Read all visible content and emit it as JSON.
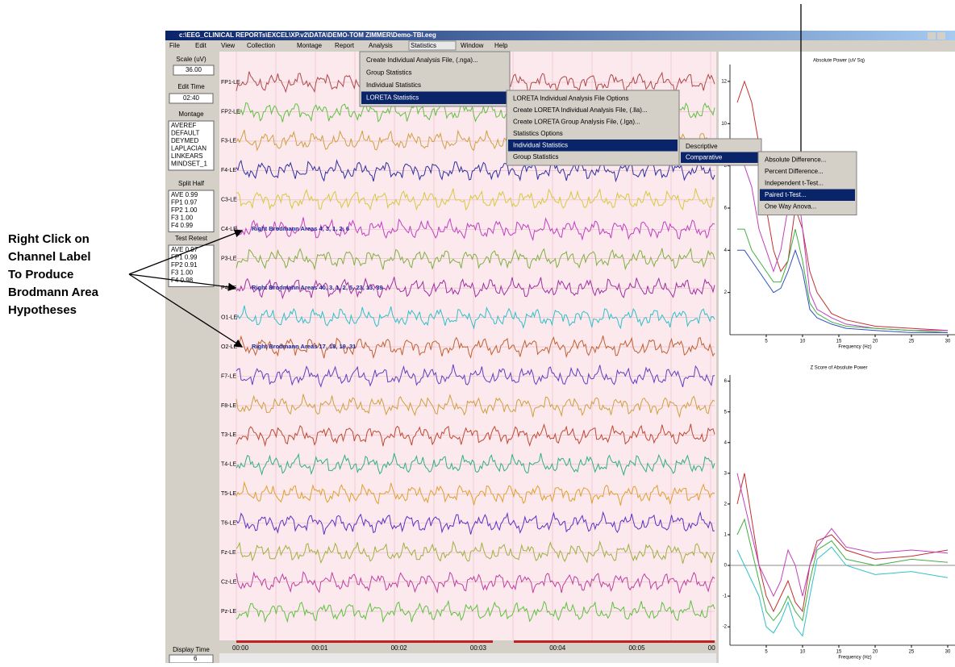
{
  "annotation": {
    "lines": [
      "Right Click on",
      "Channel Label",
      "To Produce",
      "Brodmann Area",
      "Hypotheses"
    ]
  },
  "window": {
    "title": "c:\\EEG_CLINICAL REPORTs\\EXCEL\\XP.v2\\DATA\\DEMO-TOM ZIMMER\\Demo-TBI.eeg",
    "menu": [
      "File",
      "Edit",
      "View",
      "Collection",
      "Montage",
      "Report",
      "Analysis",
      "Statistics",
      "Window",
      "Help"
    ]
  },
  "left_panel": {
    "scale_label": "Scale (uV)",
    "scale_value": "36.00",
    "edit_time_label": "Edit Time",
    "edit_time": "02:40",
    "montage_label": "Montage",
    "montage": [
      "AVEREF",
      "DEFAULT",
      "DEYMED",
      "LAPLACIAN",
      "LINKEARS",
      "MINDSET_1"
    ],
    "split_half_label": "Split Half",
    "split_half": [
      "AVE 0.99",
      "FP1 0.97",
      "FP2 1.00",
      "F3 1.00",
      "F4 0.99"
    ],
    "test_retest_label": "Test Retest",
    "test_retest": [
      "AVE 0.97",
      "FP1 0.99",
      "FP2 0.91",
      "F3 1.00",
      "F4 0.98"
    ],
    "display_time_label": "Display Time",
    "display_time": "6"
  },
  "eeg": {
    "channels": [
      {
        "label": "FP1-LE",
        "color": "#b04848"
      },
      {
        "label": "FP2-LE",
        "color": "#60c040"
      },
      {
        "label": "F3-LE",
        "color": "#d0a040"
      },
      {
        "label": "F4-LE",
        "color": "#3030a0"
      },
      {
        "label": "C3-LE",
        "color": "#d8c840"
      },
      {
        "label": "C4-LE",
        "color": "#c040c0",
        "annotation": "Right Brodmann Areas  4, 3, 1, 2, 6"
      },
      {
        "label": "P3-LE",
        "color": "#80b040"
      },
      {
        "label": "P4-LE",
        "color": "#a030a0",
        "annotation": "Right Brodmann Areas  40, 3, 1, 2, 5, 23, 13, 39"
      },
      {
        "label": "O1-LE",
        "color": "#30c0c8"
      },
      {
        "label": "O2-LE",
        "color": "#c06030",
        "annotation": "Right Brodmann Areas  17, 18, 19, 31"
      },
      {
        "label": "F7-LE",
        "color": "#6040c0"
      },
      {
        "label": "F8-LE",
        "color": "#d0a040"
      },
      {
        "label": "T3-LE",
        "color": "#c04830"
      },
      {
        "label": "T4-LE",
        "color": "#30b080"
      },
      {
        "label": "T5-LE",
        "color": "#e0a030"
      },
      {
        "label": "T6-LE",
        "color": "#6030c0"
      },
      {
        "label": "Fz-LE",
        "color": "#a0b040"
      },
      {
        "label": "Cz-LE",
        "color": "#c040a0"
      },
      {
        "label": "Pz-LE",
        "color": "#60c040"
      }
    ],
    "time_labels": [
      "00:00",
      "00:01",
      "00:02",
      "00:03",
      "00:04",
      "00:05",
      "00"
    ]
  },
  "menus": {
    "statistics": [
      "Create Individual Analysis File, (.nga)...",
      "Group Statistics",
      "Individual Statistics",
      "LORETA Statistics"
    ],
    "loreta": [
      "LORETA Individual Analysis File Options",
      "Create LORETA Individual Analysis File, (.lla)...",
      "Create LORETA Group Analysis File, (.lga)...",
      "Statistics Options",
      "Individual Statistics",
      "Group Statistics"
    ],
    "individual": [
      "Descriptive",
      "Comparative"
    ],
    "comparative": [
      "Absolute Difference...",
      "Percent Difference...",
      "Independent t-Test...",
      "Paired t-Test...",
      "One Way Anova..."
    ]
  },
  "chart_data": [
    {
      "type": "line",
      "title": "Absolute Power (uV Sq)",
      "x_label": "Frequency (Hz)",
      "x": [
        1,
        2,
        3,
        4,
        5,
        6,
        7,
        8,
        9,
        10,
        11,
        12,
        14,
        16,
        20,
        25,
        30
      ],
      "series": [
        {
          "color": "#c03030",
          "values": [
            11,
            12,
            11,
            9,
            6,
            4,
            3,
            3.5,
            6,
            5,
            3,
            2,
            1,
            0.7,
            0.4,
            0.3,
            0.2
          ]
        },
        {
          "color": "#c040c0",
          "values": [
            9,
            8,
            7,
            5,
            4,
            3,
            4,
            6,
            8,
            5,
            2,
            1.2,
            0.8,
            0.5,
            0.3,
            0.2,
            0.2
          ]
        },
        {
          "color": "#40b040",
          "values": [
            5,
            5,
            4,
            3.5,
            3,
            2.5,
            2.5,
            3.5,
            5,
            3.5,
            1.5,
            1,
            0.6,
            0.4,
            0.3,
            0.2,
            0.1
          ]
        },
        {
          "color": "#3050c0",
          "values": [
            4,
            4,
            3.5,
            3,
            2.5,
            2,
            2.2,
            3,
            4,
            3,
            1.2,
            0.8,
            0.5,
            0.3,
            0.2,
            0.1,
            0.1
          ]
        }
      ],
      "xlim": [
        0,
        31
      ],
      "ylim": [
        0,
        12.8
      ],
      "xticks": [
        5,
        10,
        15,
        20,
        25,
        30
      ],
      "yticks": [
        2,
        4,
        6,
        8,
        10,
        12
      ]
    },
    {
      "type": "line",
      "title": "Z Score of Absolute Power",
      "x_label": "Frequency (Hz)",
      "x": [
        1,
        2,
        3,
        4,
        5,
        6,
        7,
        8,
        9,
        10,
        11,
        12,
        14,
        16,
        20,
        25,
        30
      ],
      "series": [
        {
          "color": "#c03030",
          "values": [
            2,
            3,
            1.5,
            0,
            -1,
            -1.5,
            -1,
            -0.5,
            -1.2,
            -1.5,
            0,
            0.8,
            1,
            0.5,
            0.2,
            0.3,
            0.5
          ]
        },
        {
          "color": "#c040c0",
          "values": [
            3,
            2,
            1,
            0,
            -0.5,
            -1,
            -0.5,
            0.5,
            0,
            -1,
            0,
            0.6,
            1.2,
            0.6,
            0.4,
            0.5,
            0.4
          ]
        },
        {
          "color": "#40b040",
          "values": [
            1,
            1.5,
            0.5,
            -0.5,
            -1.5,
            -1.8,
            -1.5,
            -1,
            -1.5,
            -1.8,
            -0.5,
            0.5,
            0.8,
            0.2,
            0,
            0.2,
            0.1
          ]
        },
        {
          "color": "#30c0c8",
          "values": [
            0.5,
            0,
            -0.5,
            -1,
            -2,
            -2.2,
            -1.8,
            -1.2,
            -2,
            -2.3,
            -1,
            0.2,
            0.6,
            0,
            -0.3,
            -0.2,
            -0.4
          ]
        }
      ],
      "xlim": [
        0,
        31
      ],
      "ylim": [
        -2.6,
        6.2
      ],
      "xticks": [
        5,
        10,
        15,
        20,
        25,
        30
      ],
      "yticks": [
        -2,
        -1,
        0,
        1,
        2,
        3,
        4,
        5,
        6
      ]
    }
  ]
}
